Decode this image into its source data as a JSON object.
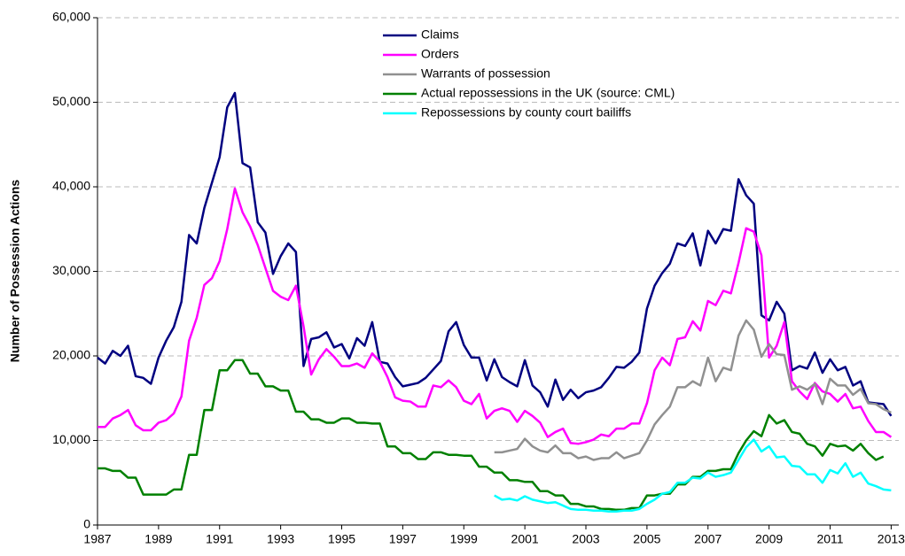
{
  "chart_data": {
    "type": "line",
    "y_label": "Number of Possession Actions",
    "x": [
      1987,
      1987.25,
      1987.5,
      1987.75,
      1988,
      1988.25,
      1988.5,
      1988.75,
      1989,
      1989.25,
      1989.5,
      1989.75,
      1990,
      1990.25,
      1990.5,
      1990.75,
      1991,
      1991.25,
      1991.5,
      1991.75,
      1992,
      1992.25,
      1992.5,
      1992.75,
      1993,
      1993.25,
      1993.5,
      1993.75,
      1994,
      1994.25,
      1994.5,
      1994.75,
      1995,
      1995.25,
      1995.5,
      1995.75,
      1996,
      1996.25,
      1996.5,
      1996.75,
      1997,
      1997.25,
      1997.5,
      1997.75,
      1998,
      1998.25,
      1998.5,
      1998.75,
      1999,
      1999.25,
      1999.5,
      1999.75,
      2000,
      2000.25,
      2000.5,
      2000.75,
      2001,
      2001.25,
      2001.5,
      2001.75,
      2002,
      2002.25,
      2002.5,
      2002.75,
      2003,
      2003.25,
      2003.5,
      2003.75,
      2004,
      2004.25,
      2004.5,
      2004.75,
      2005,
      2005.25,
      2005.5,
      2005.75,
      2006,
      2006.25,
      2006.5,
      2006.75,
      2007,
      2007.25,
      2007.5,
      2007.75,
      2008,
      2008.25,
      2008.5,
      2008.75,
      2009,
      2009.25,
      2009.5,
      2009.75,
      2010,
      2010.25,
      2010.5,
      2010.75,
      2011,
      2011.25,
      2011.5,
      2011.75,
      2012,
      2012.25,
      2012.5,
      2012.75,
      2013
    ],
    "series": [
      {
        "name": "Claims",
        "color": "#000080",
        "values": [
          19800,
          19100,
          20600,
          20000,
          21200,
          17600,
          17400,
          16700,
          19800,
          21800,
          23400,
          26400,
          34300,
          33300,
          37500,
          40500,
          43500,
          49400,
          51100,
          42800,
          42300,
          35800,
          34600,
          29700,
          31800,
          33300,
          32300,
          18800,
          22000,
          22200,
          22800,
          21000,
          21400,
          19700,
          22100,
          21200,
          24000,
          19300,
          19100,
          17500,
          16400,
          16600,
          16800,
          17400,
          18400,
          19400,
          22900,
          24000,
          21300,
          19800,
          19800,
          17100,
          19600,
          17500,
          16900,
          16400,
          19500,
          16500,
          15700,
          14000,
          17200,
          14800,
          16000,
          15000,
          15700,
          15900,
          16300,
          17400,
          18700,
          18600,
          19300,
          20400,
          25600,
          28300,
          29800,
          30900,
          33300,
          33000,
          34500,
          30700,
          34800,
          33300,
          35000,
          34800,
          40900,
          39000,
          38000,
          24800,
          24200,
          26400,
          25000,
          18300,
          18800,
          18500,
          20400,
          18000,
          19600,
          18300,
          18700,
          16500,
          17000,
          14500,
          14400,
          14300,
          12900
        ]
      },
      {
        "name": "Orders",
        "color": "#ff00ff",
        "values": [
          11600,
          11600,
          12600,
          13000,
          13600,
          11800,
          11200,
          11200,
          12100,
          12400,
          13200,
          15200,
          21800,
          24500,
          28400,
          29200,
          31200,
          35000,
          39800,
          37000,
          35300,
          33100,
          30400,
          27700,
          27000,
          26600,
          28300,
          23500,
          17800,
          19600,
          20800,
          19900,
          18800,
          18800,
          19100,
          18600,
          20300,
          19300,
          17500,
          15100,
          14700,
          14600,
          14000,
          14000,
          16500,
          16300,
          17100,
          16300,
          14700,
          14300,
          15500,
          12600,
          13500,
          13800,
          13500,
          12200,
          13500,
          12900,
          12100,
          10400,
          11000,
          11400,
          9700,
          9600,
          9800,
          10100,
          10700,
          10500,
          11400,
          11400,
          12000,
          12000,
          14400,
          18300,
          19800,
          18900,
          22000,
          22200,
          24100,
          23000,
          26500,
          26000,
          27700,
          27400,
          31000,
          35100,
          34700,
          31900,
          19800,
          21200,
          24000,
          17000,
          15800,
          14900,
          16800,
          15800,
          15500,
          14600,
          15500,
          13800,
          14000,
          12300,
          11000,
          11000,
          10400
        ]
      },
      {
        "name": "Warrants of possession",
        "color": "#909090",
        "values": [
          null,
          null,
          null,
          null,
          null,
          null,
          null,
          null,
          null,
          null,
          null,
          null,
          null,
          null,
          null,
          null,
          null,
          null,
          null,
          null,
          null,
          null,
          null,
          null,
          null,
          null,
          null,
          null,
          null,
          null,
          null,
          null,
          null,
          null,
          null,
          null,
          null,
          null,
          null,
          null,
          null,
          null,
          null,
          null,
          null,
          null,
          null,
          null,
          null,
          null,
          null,
          null,
          8600,
          8600,
          8800,
          9000,
          10200,
          9300,
          8800,
          8600,
          9400,
          8500,
          8500,
          7900,
          8100,
          7700,
          7900,
          7900,
          8600,
          7900,
          8200,
          8500,
          10000,
          11900,
          13000,
          14000,
          16300,
          16300,
          17000,
          16500,
          19800,
          17000,
          18600,
          18300,
          22400,
          24200,
          23100,
          19900,
          21400,
          20200,
          20100,
          16000,
          16400,
          16000,
          16700,
          14300,
          17300,
          16500,
          16500,
          15400,
          16100,
          14400,
          14300,
          13700,
          13300
        ]
      },
      {
        "name": "Actual repossessions in the UK (source: CML)",
        "color": "#008000",
        "values": [
          6700,
          6700,
          6400,
          6400,
          5600,
          5600,
          3600,
          3600,
          3600,
          3600,
          4200,
          4200,
          8300,
          8300,
          13600,
          13600,
          18300,
          18300,
          19500,
          19500,
          17900,
          17900,
          16400,
          16400,
          15900,
          15900,
          13400,
          13400,
          12500,
          12500,
          12100,
          12100,
          12600,
          12600,
          12100,
          12100,
          12000,
          12000,
          9300,
          9300,
          8500,
          8500,
          7800,
          7800,
          8600,
          8600,
          8300,
          8300,
          8200,
          8200,
          6900,
          6900,
          6200,
          6200,
          5300,
          5300,
          5100,
          5100,
          4000,
          4000,
          3500,
          3500,
          2500,
          2500,
          2200,
          2200,
          1900,
          1900,
          1800,
          1800,
          2000,
          2000,
          3500,
          3500,
          3700,
          3700,
          4800,
          4800,
          5700,
          5700,
          6400,
          6400,
          6600,
          6600,
          8500,
          10000,
          11100,
          10500,
          13000,
          12000,
          12400,
          11000,
          10800,
          9600,
          9300,
          8200,
          9600,
          9300,
          9400,
          8800,
          9600,
          8500,
          7700,
          8100,
          null
        ]
      },
      {
        "name": "Repossessions by county court bailiffs",
        "color": "#00ffff",
        "values": [
          null,
          null,
          null,
          null,
          null,
          null,
          null,
          null,
          null,
          null,
          null,
          null,
          null,
          null,
          null,
          null,
          null,
          null,
          null,
          null,
          null,
          null,
          null,
          null,
          null,
          null,
          null,
          null,
          null,
          null,
          null,
          null,
          null,
          null,
          null,
          null,
          null,
          null,
          null,
          null,
          null,
          null,
          null,
          null,
          null,
          null,
          null,
          null,
          null,
          null,
          null,
          null,
          3500,
          3000,
          3100,
          2900,
          3400,
          3000,
          2800,
          2600,
          2700,
          2300,
          1900,
          1800,
          1800,
          1700,
          1700,
          1600,
          1600,
          1700,
          1700,
          1900,
          2500,
          3000,
          3700,
          3900,
          5000,
          5000,
          5600,
          5500,
          6200,
          5700,
          5900,
          6200,
          7700,
          9200,
          10100,
          8700,
          9300,
          8000,
          8100,
          7000,
          6900,
          6000,
          6000,
          5000,
          6500,
          6100,
          7300,
          5700,
          6200,
          4900,
          4600,
          4200,
          4100
        ]
      }
    ],
    "xlim": [
      1987,
      2013.25
    ],
    "xticks": [
      1987,
      1989,
      1991,
      1993,
      1995,
      1997,
      1999,
      2001,
      2003,
      2005,
      2007,
      2009,
      2011,
      2013
    ],
    "ylim": [
      0,
      60000
    ],
    "yticks": [
      0,
      {
        "value": 10000,
        "label": "10,000"
      },
      {
        "value": 20000,
        "label": "20,000"
      },
      {
        "value": 30000,
        "label": "30,000"
      },
      {
        "value": 40000,
        "label": "40,000"
      },
      {
        "value": 50000,
        "label": "50,000"
      },
      {
        "value": 60000,
        "label": "60,000"
      }
    ],
    "grid": true
  }
}
